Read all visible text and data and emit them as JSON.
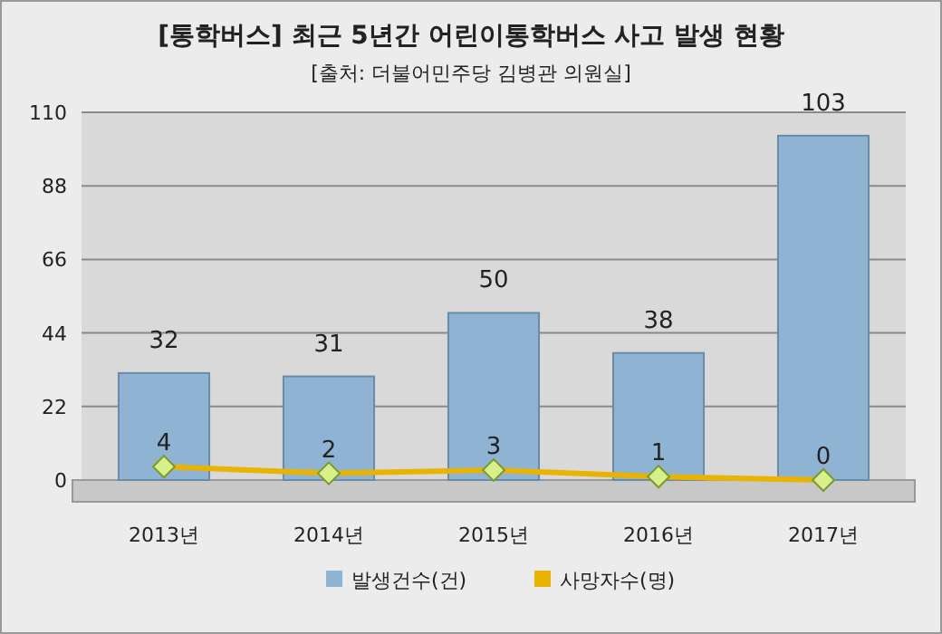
{
  "chart_data": {
    "type": "bar",
    "title": "[통학버스] 최근 5년간 어린이통학버스 사고 발생 현황",
    "subtitle": "[출처: 더불어민주당 김병관 의원실]",
    "categories": [
      "2013년",
      "2014년",
      "2015년",
      "2016년",
      "2017년"
    ],
    "series": [
      {
        "name": "발생건수(건)",
        "color": "#8fb3d3",
        "values": [
          32,
          31,
          50,
          38,
          103
        ]
      },
      {
        "name": "사망자수(명)",
        "type": "line",
        "color": "#e8b400",
        "marker": "diamond",
        "values": [
          4,
          2,
          3,
          1,
          0
        ]
      }
    ],
    "ylim": [
      0,
      110
    ],
    "yticks": [
      0,
      22,
      44,
      66,
      88,
      110
    ],
    "grid": "y",
    "legend": "bottom",
    "data_labels": true
  }
}
